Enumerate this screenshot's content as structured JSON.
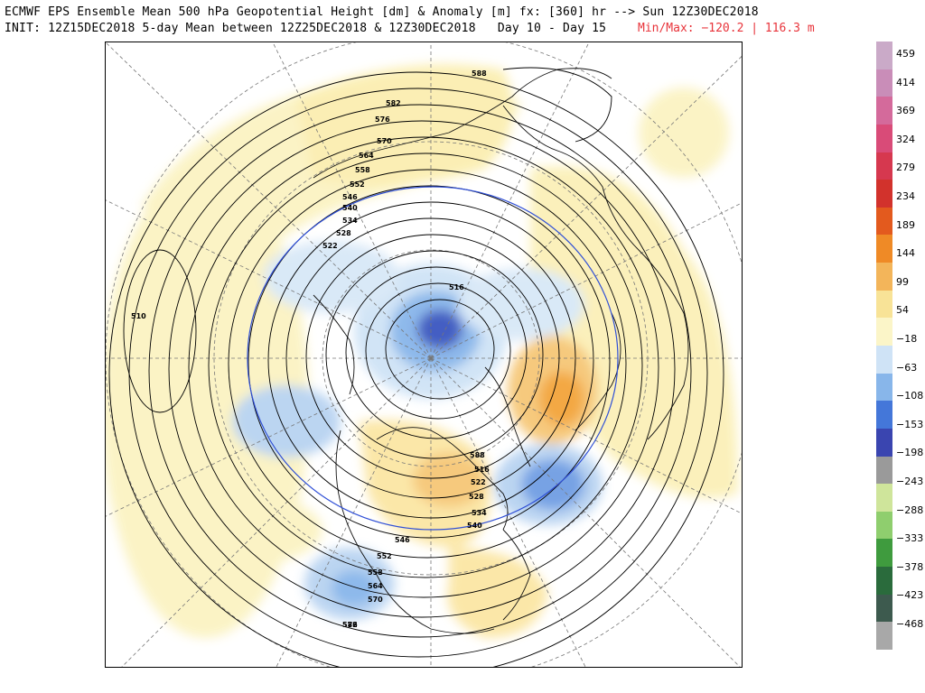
{
  "header": {
    "line1": "ECMWF EPS Ensemble Mean 500 hPa Geopotential Height [dm] & Anomaly [m] fx: [360] hr --> Sun 12Z30DEC2018",
    "line2": "INIT: 12Z15DEC2018 5-day Mean between 12Z25DEC2018 & 12Z30DEC2018   Day 10 - Day 15",
    "minmax": "Min/Max: −120.2 | 116.3 m"
  },
  "colors": {
    "min_max_text": "#e8333a",
    "positive_anomaly": "#f3a43a",
    "negative_anomaly": "#2f5fc8",
    "frame": "#000000"
  },
  "colorbar": {
    "labels": [
      "459",
      "414",
      "369",
      "324",
      "279",
      "234",
      "189",
      "144",
      "99",
      "54",
      "−18",
      "−63",
      "−108",
      "−153",
      "−198",
      "−243",
      "−288",
      "−333",
      "−378",
      "−423",
      "−468"
    ],
    "colors": [
      "#caaac8",
      "#c98db8",
      "#d46a9b",
      "#d94b78",
      "#d6384f",
      "#d2322c",
      "#e35a1e",
      "#ef8a26",
      "#f3b55a",
      "#f8e397",
      "#fbf5c8",
      "#cfe3f6",
      "#88b6ea",
      "#4477d9",
      "#3a45b0",
      "#9a9a9a",
      "#cfe59b",
      "#8fce6e",
      "#3f9b3e",
      "#2a6b3c",
      "#3d5a4e",
      "#a8a8a8"
    ]
  },
  "map": {
    "contour_labels": [
      "588",
      "582",
      "576",
      "570",
      "564",
      "558",
      "552",
      "546",
      "540",
      "534",
      "528",
      "522",
      "516",
      "510",
      "588",
      "516",
      "522",
      "528",
      "534",
      "540",
      "546",
      "552",
      "558",
      "564",
      "570",
      "576",
      "582"
    ]
  }
}
